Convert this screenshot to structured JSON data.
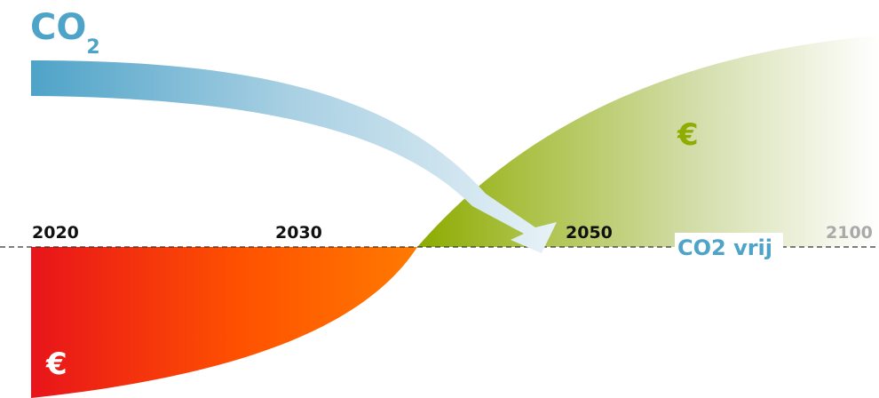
{
  "co2_title": {
    "main": "CO",
    "sub": "2"
  },
  "timeline": {
    "years": [
      "2020",
      "2030",
      "2050",
      "2100"
    ]
  },
  "labels": {
    "co2_free": "CO2 vrij",
    "cost_symbol": "€",
    "gain_symbol": "€"
  },
  "colors": {
    "co2_blue": "#4ea3c8",
    "cost_red": "#e8141a",
    "cost_orange": "#ff7a00",
    "gain_green": "#8fac00",
    "gain_pale": "#f3f4e4",
    "axis": "#333333",
    "year_gray": "#aaaaaa"
  }
}
